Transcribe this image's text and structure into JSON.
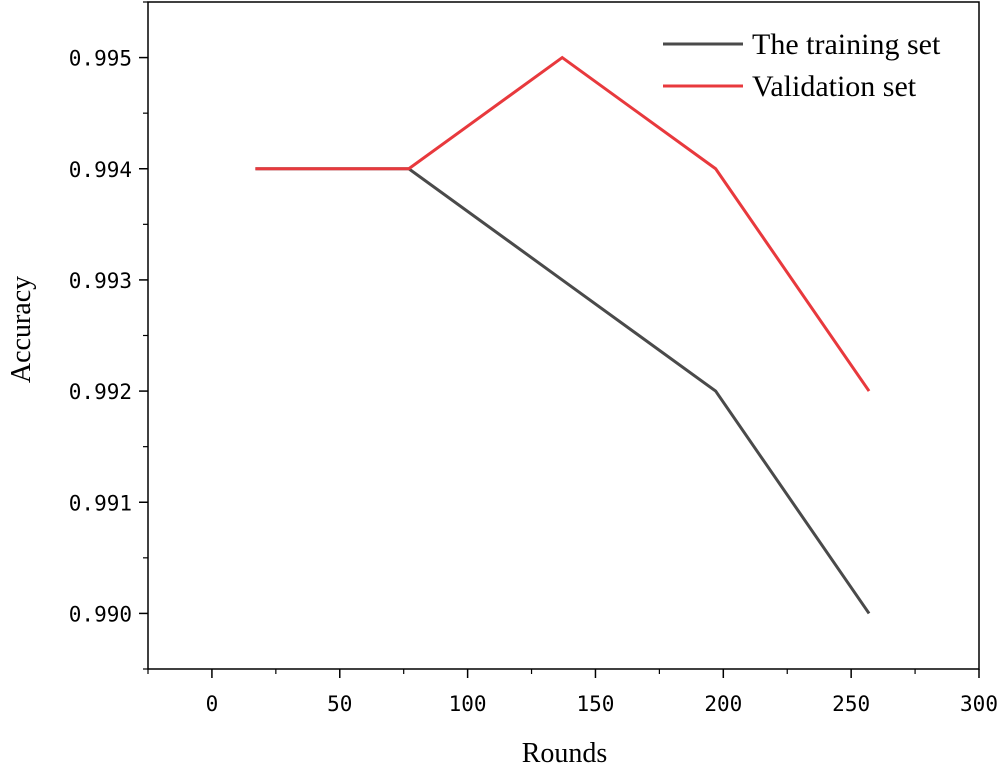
{
  "chart_data": {
    "type": "line",
    "xlabel": "Rounds",
    "ylabel": "Accuracy",
    "xlim": [
      -25,
      300
    ],
    "ylim": [
      0.9895,
      0.9955
    ],
    "x_ticks": [
      "0",
      "50",
      "100",
      "150",
      "200",
      "250",
      "300"
    ],
    "y_ticks": [
      "0.990",
      "0.991",
      "0.992",
      "0.993",
      "0.994",
      "0.995"
    ],
    "legend_position": "top-right",
    "grid": false,
    "series": [
      {
        "name": "The training set",
        "color": "#4a4a4a",
        "x": [
          17,
          77,
          137,
          197,
          257
        ],
        "y": [
          0.994,
          0.994,
          0.993,
          0.992,
          0.99
        ]
      },
      {
        "name": "Validation set",
        "color": "#e8393d",
        "x": [
          17,
          77,
          137,
          197,
          257
        ],
        "y": [
          0.994,
          0.994,
          0.995,
          0.994,
          0.992
        ]
      }
    ]
  }
}
